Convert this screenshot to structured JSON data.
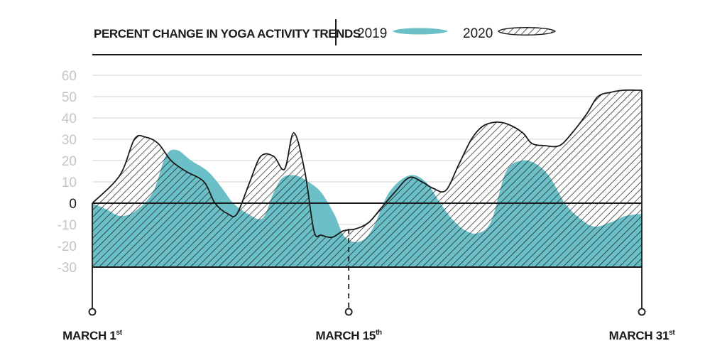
{
  "chart_data": {
    "type": "area",
    "title": "PERCENT CHANGE IN YOGA ACTIVITY TRENDS",
    "ylim": [
      -30,
      60
    ],
    "yticks": [
      60,
      50,
      40,
      30,
      20,
      10,
      0,
      -10,
      -20,
      -30
    ],
    "grid": true,
    "legend_position": "top",
    "x_labels": [
      {
        "main": "MARCH 1",
        "sup": "st",
        "day": 1
      },
      {
        "main": "MARCH 15",
        "sup": "th",
        "day": 15
      },
      {
        "main": "MARCH 31",
        "sup": "st",
        "day": 31
      }
    ],
    "series": [
      {
        "name": "2019",
        "color": "#6bbfc7",
        "style": "solid",
        "x": [
          1,
          1.8,
          2.5,
          3.3,
          4.3,
          5,
          5.6,
          6.4,
          7.3,
          8,
          8.7,
          9.5,
          10.3,
          10.9,
          11.4,
          12.1,
          12.8,
          13.5,
          14.2,
          14.8,
          15.6,
          16.3,
          17.2,
          18.3,
          19.2,
          20,
          20.7,
          21.4,
          22.1,
          22.8,
          23.6,
          24.5,
          25.3,
          26,
          26.8,
          27.6,
          28.4,
          29.3,
          30.1,
          31
        ],
        "y": [
          0,
          -3,
          -6,
          -4,
          5,
          22,
          25,
          20,
          15,
          8,
          0,
          -5,
          -7,
          5,
          12,
          13,
          10,
          5,
          -5,
          -16,
          -18,
          -12,
          5,
          13,
          10,
          0,
          -8,
          -13,
          -14,
          -8,
          15,
          20,
          18,
          12,
          0,
          -7,
          -11,
          -9,
          -6,
          -5
        ]
      },
      {
        "name": "2020",
        "color": "#ffffff",
        "style": "hatched",
        "x": [
          1,
          2.5,
          3.3,
          3.9,
          4.6,
          5.3,
          6.1,
          7.1,
          7.7,
          8.4,
          8.9,
          9.6,
          10.2,
          10.9,
          11.5,
          12,
          12.6,
          13.1,
          13.5,
          14.1,
          14.7,
          15.4,
          16.1,
          16.8,
          17.5,
          18.3,
          19,
          19.6,
          20.3,
          21,
          21.7,
          22.3,
          23,
          23.7,
          24.5,
          25,
          25.7,
          26.5,
          27.2,
          28,
          28.6,
          29.3,
          30,
          30.8,
          31
        ],
        "y": [
          0,
          13,
          30,
          31,
          28,
          20,
          15,
          10,
          0,
          -5,
          -5,
          10,
          22,
          22,
          16,
          33,
          15,
          -13,
          -15,
          -16,
          -13,
          -12,
          -9,
          -2,
          5,
          12,
          10,
          7,
          6,
          18,
          30,
          36,
          38,
          37,
          33,
          28,
          27,
          27,
          33,
          42,
          50,
          52,
          53,
          53,
          53
        ]
      }
    ]
  }
}
